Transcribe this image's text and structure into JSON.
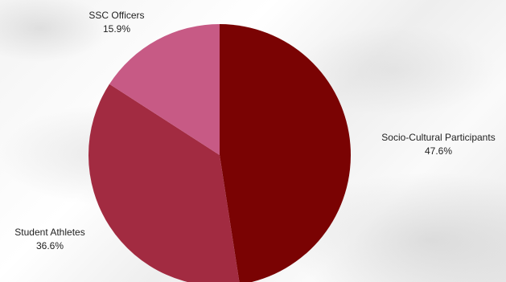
{
  "chart_data": {
    "type": "pie",
    "categories": [
      "Socio-Cultural Participants",
      "Student Athletes",
      "SSC Officers"
    ],
    "values": [
      47.6,
      36.6,
      15.9
    ],
    "percent_labels": [
      "47.6%",
      "36.6%",
      "15.9%"
    ],
    "colors": [
      "#7a0303",
      "#a22b41",
      "#c75a85"
    ],
    "title": "",
    "start_angle_deg": 0,
    "direction": "clockwise",
    "legend": "none"
  }
}
